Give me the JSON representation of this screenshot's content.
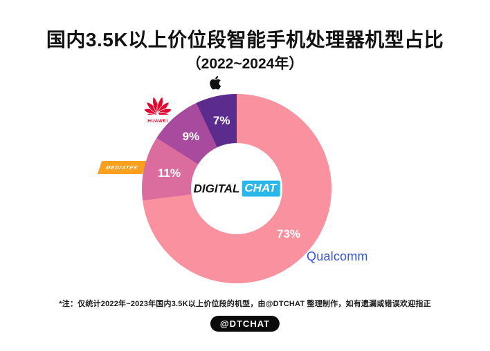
{
  "page": {
    "title": "国内3.5K以上价位段智能手机处理器机型占比",
    "subtitle": "（2022~2024年）",
    "footnote": "*注：仅统计2022年~2023年国内3.5K以上价位段的机型，由@DTCHAT 整理制作，如有遗漏或错误欢迎指正",
    "badge": "@DTCHAT"
  },
  "center_logo": {
    "word1": "DIGITAL",
    "word2": "CHAT",
    "word2_bg": "#29B6E8"
  },
  "brand_labels": {
    "apple_icon": "apple-logo",
    "huawei": "HUAWEI",
    "huawei_color": "#E4032E",
    "mediatek": "MEDIATEK",
    "mediatek_bg": "#F9A01E",
    "qualcomm": "Qualcomm",
    "qualcomm_color": "#3253DC"
  },
  "chart_data": {
    "type": "pie",
    "variant": "donut",
    "title": "国内3.5K以上价位段智能手机处理器机型占比（2022~2024年）",
    "unit": "%",
    "start_angle_deg": 0,
    "direction": "clockwise",
    "legend_position": "around-chart-as-brand-logos",
    "segments": [
      {
        "name": "Qualcomm",
        "value": 73,
        "color": "#F9919E"
      },
      {
        "name": "MediaTek",
        "value": 11,
        "color": "#DB6C9E"
      },
      {
        "name": "Huawei",
        "value": 9,
        "color": "#A84B9E"
      },
      {
        "name": "Apple",
        "value": 7,
        "color": "#5B2B8E"
      }
    ]
  }
}
